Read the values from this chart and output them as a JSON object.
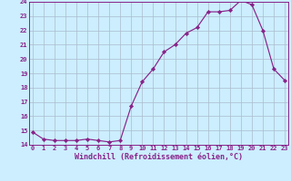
{
  "x": [
    0,
    1,
    2,
    3,
    4,
    5,
    6,
    7,
    8,
    9,
    10,
    11,
    12,
    13,
    14,
    15,
    16,
    17,
    18,
    19,
    20,
    21,
    22,
    23
  ],
  "y": [
    14.9,
    14.4,
    14.3,
    14.3,
    14.3,
    14.4,
    14.3,
    14.2,
    14.3,
    16.7,
    18.4,
    19.3,
    20.5,
    21.0,
    21.8,
    22.2,
    23.3,
    23.3,
    23.4,
    24.1,
    23.8,
    22.0,
    19.3,
    18.5
  ],
  "line_color": "#882288",
  "marker": "D",
  "marker_size": 2.2,
  "background_color": "#cceeff",
  "grid_color": "#aabbcc",
  "xlabel": "Windchill (Refroidissement éolien,°C)",
  "xlim_left": -0.3,
  "xlim_right": 23.3,
  "ylim": [
    14,
    24
  ],
  "yticks": [
    14,
    15,
    16,
    17,
    18,
    19,
    20,
    21,
    22,
    23,
    24
  ],
  "xticks": [
    0,
    1,
    2,
    3,
    4,
    5,
    6,
    7,
    8,
    9,
    10,
    11,
    12,
    13,
    14,
    15,
    16,
    17,
    18,
    19,
    20,
    21,
    22,
    23
  ],
  "tick_color": "#882288",
  "spine_color": "#882288",
  "tick_fontsize": 5.0,
  "xlabel_fontsize": 6.0,
  "linewidth": 0.85
}
